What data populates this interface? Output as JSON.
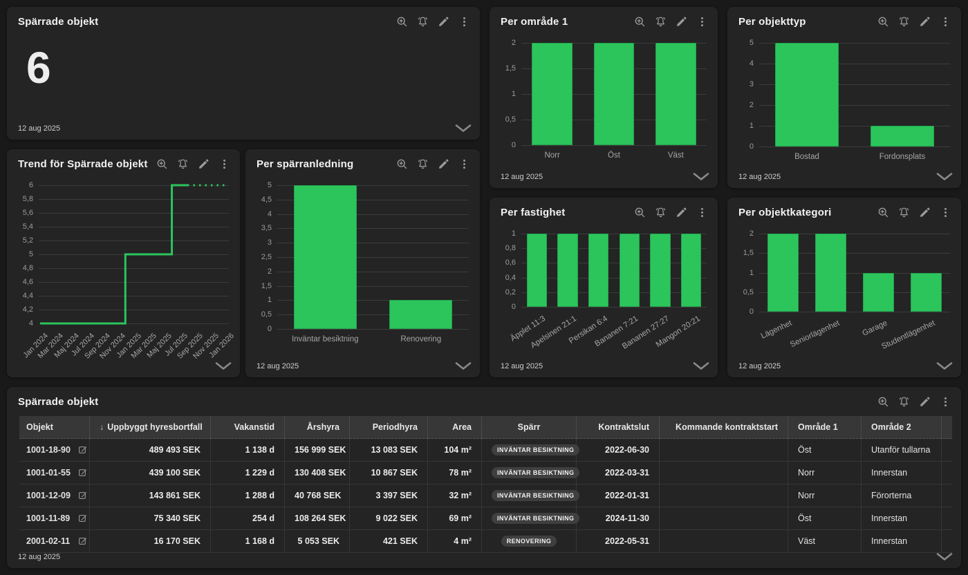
{
  "updated": "12 aug 2025",
  "theme": {
    "page_bg": "#191919",
    "card_bg": "#242424",
    "accent_green": "#2bc55c",
    "grid_color": "#3c3c3c",
    "tick_color": "#9c9c9c",
    "table_header_bg": "#373737",
    "badge_bg": "#3f3f3f",
    "icon_color": "#9a9a9a"
  },
  "icons": {
    "zoom_in": "magnifier-with-plus",
    "alert": "bell",
    "edit": "pencil",
    "menu": "vertical-kebab-dots",
    "expand": "chevron-down",
    "row_edit": "square-with-pencil"
  },
  "kpi": {
    "title": "Spärrade objekt",
    "value": "6"
  },
  "chart_data": [
    {
      "id": "omrade1",
      "type": "bar",
      "title": "Per område 1",
      "categories": [
        "Norr",
        "Öst",
        "Väst"
      ],
      "values": [
        2,
        2,
        2
      ],
      "yticks": [
        "0",
        "0,5",
        "1",
        "1,5",
        "2"
      ],
      "ymax": 2,
      "label_rotation": 0,
      "grid": true,
      "legend": "none"
    },
    {
      "id": "objekttyp",
      "type": "bar",
      "title": "Per objekttyp",
      "categories": [
        "Bostad",
        "Fordonsplats"
      ],
      "values": [
        5,
        1
      ],
      "yticks": [
        "0",
        "1",
        "2",
        "3",
        "4",
        "5"
      ],
      "ymax": 5,
      "label_rotation": 0,
      "grid": true,
      "legend": "none"
    },
    {
      "id": "trend",
      "type": "line",
      "title": "Trend för Spärrade objekt",
      "months": [
        "Jan 2024",
        "Feb 2024",
        "Mar 2024",
        "Apr 2024",
        "Maj 2024",
        "Jun 2024",
        "Jul 2024",
        "Aug 2024",
        "Sep 2024",
        "Okt 2024",
        "Nov 2024",
        "Dec 2024",
        "Jan 2025",
        "Feb 2025",
        "Mar 2025",
        "Apr 2025",
        "Maj 2025",
        "Jun 2025",
        "Jul 2025",
        "Aug 2025",
        "Sep 2025",
        "Okt 2025",
        "Nov 2025",
        "Dec 2025",
        "Jan 2026"
      ],
      "values": [
        4,
        4,
        4,
        4,
        4,
        4,
        4,
        4,
        4,
        4,
        4,
        5,
        5,
        5,
        5,
        5,
        5,
        6,
        6,
        6,
        6,
        6,
        6,
        6,
        6
      ],
      "x_tick_labels": [
        "Jan 2024",
        "Mar 2024",
        "Maj 2024",
        "Jul 2024",
        "Sep 2024",
        "Nov 2024",
        "Jan 2025",
        "Mar 2025",
        "Maj 2025",
        "Jul 2025",
        "Sep 2025",
        "Nov 2025",
        "Jan 2026"
      ],
      "yticks": [
        "4",
        "4,2",
        "4,4",
        "4,6",
        "4,8",
        "5",
        "5,2",
        "5,4",
        "5,6",
        "5,8",
        "6"
      ],
      "ymin": 4,
      "ymax": 6,
      "projected_from_index": 19,
      "x_label_rotation": -45,
      "grid": true,
      "legend": "none"
    },
    {
      "id": "sparranledning",
      "type": "bar",
      "title": "Per spärranledning",
      "categories": [
        "Inväntar besiktning",
        "Renovering"
      ],
      "values": [
        5,
        1
      ],
      "yticks": [
        "0",
        "0,5",
        "1",
        "1,5",
        "2",
        "2,5",
        "3",
        "3,5",
        "4",
        "4,5",
        "5"
      ],
      "ymax": 5,
      "label_rotation": 0,
      "grid": true,
      "legend": "none"
    },
    {
      "id": "fastighet",
      "type": "bar",
      "title": "Per fastighet",
      "categories": [
        "Äpplet 11:3",
        "Apelsinen 21:1",
        "Persikan 6:4",
        "Bananen 7:21",
        "Bananen 27:27",
        "Mangon 20:21"
      ],
      "values": [
        1,
        1,
        1,
        1,
        1,
        1
      ],
      "yticks": [
        "0",
        "0,2",
        "0,4",
        "0,6",
        "0,8",
        "1"
      ],
      "ymax": 1,
      "label_rotation": -33,
      "grid": true,
      "legend": "none"
    },
    {
      "id": "objektkategori",
      "type": "bar",
      "title": "Per objektkategori",
      "categories": [
        "Lägenhet",
        "Seniorlägenhet",
        "Garage",
        "Studentlägenhet"
      ],
      "values": [
        2,
        2,
        1,
        1
      ],
      "yticks": [
        "0",
        "0,5",
        "1",
        "1,5",
        "2"
      ],
      "ymax": 2,
      "label_rotation": -25,
      "grid": true,
      "legend": "none"
    }
  ],
  "table": {
    "title": "Spärrade objekt",
    "sort_indicator": "↓",
    "columns": [
      {
        "key": "objekt",
        "label": "Objekt",
        "align": "left",
        "width": 102
      },
      {
        "key": "uppbyggt",
        "label": "Uppbyggt hyresbortfall",
        "align": "right",
        "width": 175,
        "sorted": "desc"
      },
      {
        "key": "vakanstid",
        "label": "Vakanstid",
        "align": "right",
        "width": 107
      },
      {
        "key": "arshyra",
        "label": "Årshyra",
        "align": "right",
        "width": 94
      },
      {
        "key": "periodhyra",
        "label": "Periodhyra",
        "align": "right",
        "width": 113
      },
      {
        "key": "area",
        "label": "Area",
        "align": "right",
        "width": 78
      },
      {
        "key": "sparr",
        "label": "Spärr",
        "align": "center",
        "width": 137
      },
      {
        "key": "kontraktslut",
        "label": "Kontraktslut",
        "align": "right",
        "width": 120
      },
      {
        "key": "kommande",
        "label": "Kommande kontraktstart",
        "align": "right",
        "width": 186
      },
      {
        "key": "omrade1",
        "label": "Område 1",
        "align": "left",
        "width": 106
      },
      {
        "key": "omrade2",
        "label": "Område 2",
        "align": "left",
        "width": 116
      },
      {
        "key": "spacer",
        "label": "",
        "align": "left",
        "width": 15
      }
    ],
    "rows": [
      {
        "objekt": "1001-18-90",
        "uppbyggt": "489 493 SEK",
        "vakanstid": "1 138 d",
        "arshyra": "156 999 SEK",
        "periodhyra": "13 083 SEK",
        "area": "104 m²",
        "sparr": "INVÄNTAR BESIKTNING",
        "kontraktslut": "2022-06-30",
        "kommande": "",
        "omrade1": "Öst",
        "omrade2": "Utanför tullarna"
      },
      {
        "objekt": "1001-01-55",
        "uppbyggt": "439 100 SEK",
        "vakanstid": "1 229 d",
        "arshyra": "130 408 SEK",
        "periodhyra": "10 867 SEK",
        "area": "78 m²",
        "sparr": "INVÄNTAR BESIKTNING",
        "kontraktslut": "2022-03-31",
        "kommande": "",
        "omrade1": "Norr",
        "omrade2": "Innerstan"
      },
      {
        "objekt": "1001-12-09",
        "uppbyggt": "143 861 SEK",
        "vakanstid": "1 288 d",
        "arshyra": "40 768 SEK",
        "periodhyra": "3 397 SEK",
        "area": "32 m²",
        "sparr": "INVÄNTAR BESIKTNING",
        "kontraktslut": "2022-01-31",
        "kommande": "",
        "omrade1": "Norr",
        "omrade2": "Förorterna"
      },
      {
        "objekt": "1001-11-89",
        "uppbyggt": "75 340 SEK",
        "vakanstid": "254 d",
        "arshyra": "108 264 SEK",
        "periodhyra": "9 022 SEK",
        "area": "69 m²",
        "sparr": "INVÄNTAR BESIKTNING",
        "kontraktslut": "2024-11-30",
        "kommande": "",
        "omrade1": "Öst",
        "omrade2": "Innerstan"
      },
      {
        "objekt": "2001-02-11",
        "uppbyggt": "16 170 SEK",
        "vakanstid": "1 168 d",
        "arshyra": "5 053 SEK",
        "periodhyra": "421 SEK",
        "area": "4 m²",
        "sparr": "RENOVERING",
        "kontraktslut": "2022-05-31",
        "kommande": "",
        "omrade1": "Väst",
        "omrade2": "Innerstan"
      }
    ]
  }
}
